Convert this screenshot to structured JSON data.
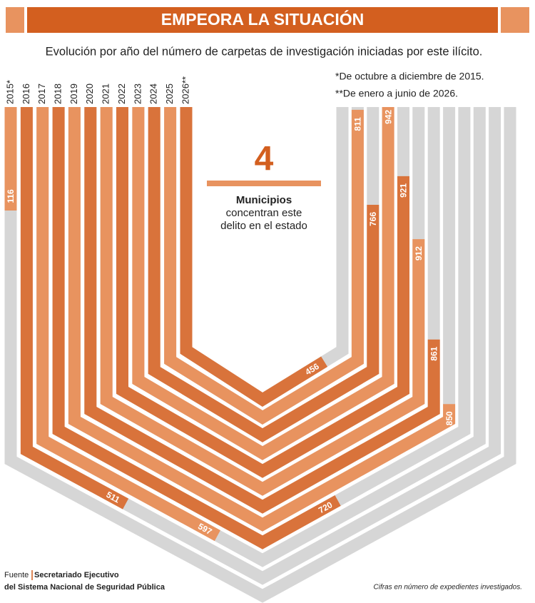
{
  "chart_data": {
    "type": "ribbon",
    "title": "EMPEORA LA SITUACIÓN",
    "subtitle": "Evolución por año del número de carpetas de investigación iniciadas por este ilícito.",
    "notes": [
      "*De octubre a diciembre de 2015.",
      "**De enero a junio de 2026."
    ],
    "categories": [
      "2015*",
      "2016",
      "2017",
      "2018",
      "2019",
      "2020",
      "2021",
      "2022",
      "2023",
      "2024",
      "2025",
      "2026**"
    ],
    "values": [
      116,
      511,
      597,
      720,
      850,
      861,
      912,
      921,
      942,
      766,
      811,
      456
    ],
    "colors": [
      "#e8935f",
      "#d9733b"
    ],
    "track_color": "#d6d6d6",
    "highlight": {
      "value": 4,
      "label": "Municipios",
      "text": [
        "concentran este",
        "delito en el estado"
      ]
    },
    "source_label": "Fuente",
    "source": [
      "Secretariado Ejecutivo",
      "del Sistema Nacional de Seguridad Pública"
    ],
    "footnote": "Cifras en número de expedientes investigados."
  }
}
